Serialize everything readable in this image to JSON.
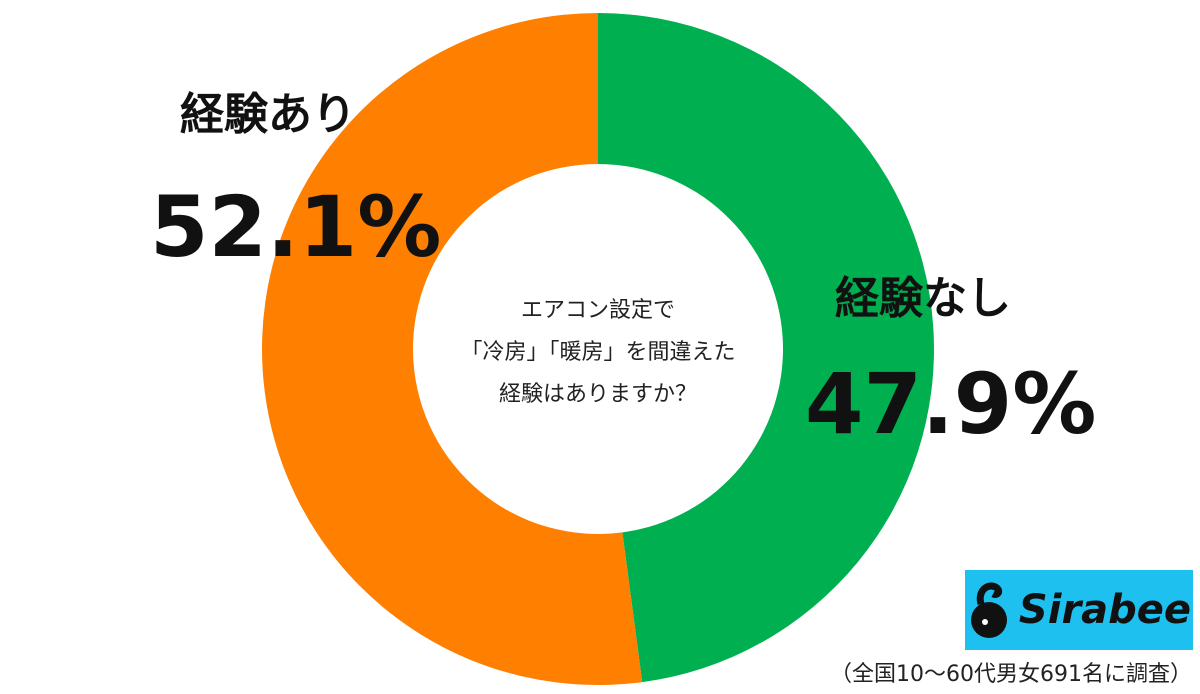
{
  "chart_data": {
    "type": "pie",
    "donut": true,
    "title": "エアコン設定で「冷房」「暖房」を間違えた経験はありますか？",
    "title_lines": [
      "エアコン設定で",
      "「冷房」「暖房」を間違えた",
      "経験はありますか？"
    ],
    "categories": [
      "経験なし",
      "経験あり"
    ],
    "values": [
      47.9,
      52.1
    ],
    "value_labels": [
      "47.9%",
      "52.1%"
    ],
    "colors": [
      "#00b050",
      "#ff7f00"
    ],
    "start": "top, clockwise"
  },
  "logo": {
    "text": "Sirabee",
    "background": "#1ec0ef"
  },
  "footnote": "（全国10〜60代男女691名に調査）"
}
